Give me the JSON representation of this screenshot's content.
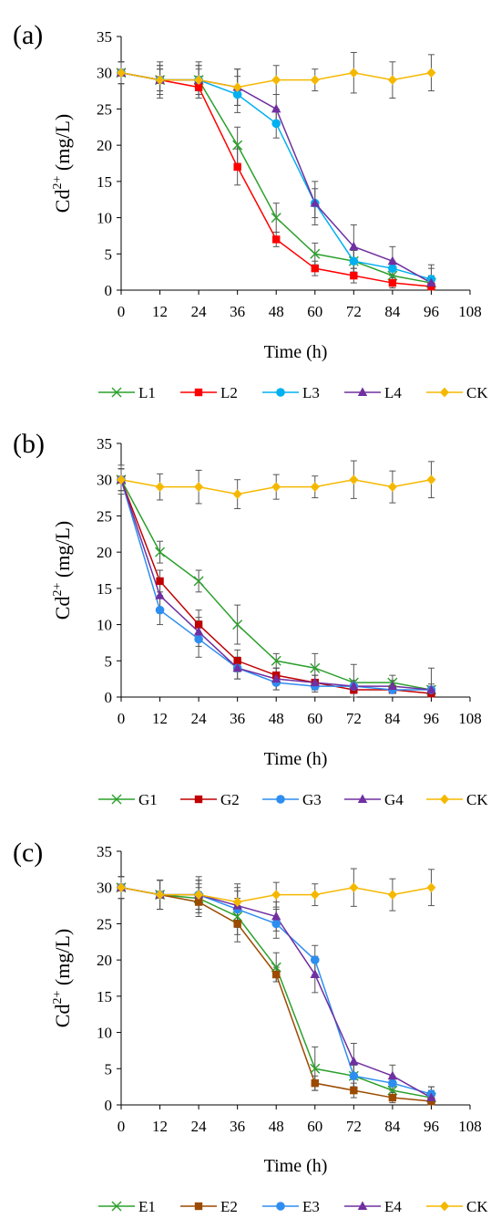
{
  "chart_data": [
    {
      "type": "line",
      "panel_label": "(a)",
      "xlabel": "Time (h)",
      "ylabel": {
        "base": "Cd",
        "sup": "2+",
        "rest": " (mg/L)"
      },
      "xlim": [
        0,
        108
      ],
      "ylim": [
        0,
        35
      ],
      "x_ticks": [
        0,
        12,
        24,
        36,
        48,
        60,
        72,
        84,
        96,
        108
      ],
      "y_ticks": [
        0,
        5,
        10,
        15,
        20,
        25,
        30,
        35
      ],
      "x": [
        0,
        12,
        24,
        36,
        48,
        60,
        72,
        84,
        96
      ],
      "grid": false,
      "legend_position": "bottom",
      "series": [
        {
          "name": "L1",
          "color": "#2ca02c",
          "marker": "x",
          "values": [
            30,
            29,
            29,
            20,
            10,
            5,
            4,
            2,
            1
          ],
          "errors": [
            1.5,
            1.5,
            1.5,
            2.5,
            2.0,
            1.5,
            1.5,
            1.0,
            1.0
          ]
        },
        {
          "name": "L2",
          "color": "#ff0000",
          "marker": "square",
          "values": [
            30,
            29,
            28,
            17,
            7,
            3,
            2,
            1,
            0.5
          ],
          "errors": [
            1.5,
            1.5,
            1.5,
            2.5,
            1.0,
            1.0,
            1.0,
            0.7,
            0.5
          ]
        },
        {
          "name": "L3",
          "color": "#00b0f0",
          "marker": "circle",
          "values": [
            30,
            29,
            29,
            27,
            23,
            12,
            4,
            3,
            1.5
          ],
          "errors": [
            1.5,
            2.0,
            2.0,
            2.5,
            2.0,
            2.0,
            1.5,
            1.0,
            1.5
          ]
        },
        {
          "name": "L4",
          "color": "#7030a0",
          "marker": "triangle",
          "values": [
            30,
            29,
            29,
            28,
            25,
            12,
            6,
            4,
            1
          ],
          "errors": [
            1.5,
            2.0,
            2.0,
            2.5,
            2.0,
            3.0,
            3.0,
            2.0,
            2.5
          ]
        },
        {
          "name": "CK",
          "color": "#f5b800",
          "marker": "diamond",
          "values": [
            30,
            29,
            29,
            28,
            29,
            29,
            30,
            29,
            30
          ],
          "errors": [
            1.5,
            2.5,
            2.5,
            2.5,
            2.0,
            1.5,
            2.8,
            2.5,
            2.5
          ]
        }
      ]
    },
    {
      "type": "line",
      "panel_label": "(b)",
      "xlabel": "Time (h)",
      "ylabel": {
        "base": "Cd",
        "sup": "2+",
        "rest": " (mg/L)"
      },
      "xlim": [
        0,
        108
      ],
      "ylim": [
        0,
        35
      ],
      "x_ticks": [
        0,
        12,
        24,
        36,
        48,
        60,
        72,
        84,
        96,
        108
      ],
      "y_ticks": [
        0,
        5,
        10,
        15,
        20,
        25,
        30,
        35
      ],
      "x": [
        0,
        12,
        24,
        36,
        48,
        60,
        72,
        84,
        96
      ],
      "grid": false,
      "legend_position": "bottom",
      "series": [
        {
          "name": "G1",
          "color": "#2ca02c",
          "marker": "x",
          "values": [
            30,
            20,
            16,
            10,
            5,
            4,
            2,
            2,
            1
          ],
          "errors": [
            2.0,
            1.5,
            1.5,
            2.7,
            1.0,
            2.0,
            2.5,
            1.0,
            3.0
          ]
        },
        {
          "name": "G2",
          "color": "#c00000",
          "marker": "square",
          "values": [
            30,
            16,
            10,
            5,
            3,
            2,
            1,
            1,
            0.5
          ],
          "errors": [
            1.5,
            1.5,
            2.0,
            1.5,
            1.0,
            1.0,
            0.5,
            0.5,
            0.5
          ]
        },
        {
          "name": "G3",
          "color": "#2e8ef0",
          "marker": "circle",
          "values": [
            30,
            12,
            8,
            4,
            2,
            1.5,
            1.5,
            1,
            1
          ],
          "errors": [
            1.5,
            2.0,
            2.5,
            1.5,
            1.0,
            0.8,
            0.5,
            0.5,
            0.5
          ]
        },
        {
          "name": "G4",
          "color": "#7030a0",
          "marker": "triangle",
          "values": [
            30,
            14,
            9,
            4,
            2.5,
            2,
            1.5,
            1.5,
            1
          ],
          "errors": [
            1.5,
            2.0,
            2.0,
            1.5,
            1.5,
            1.0,
            0.8,
            0.8,
            0.8
          ]
        },
        {
          "name": "CK",
          "color": "#f5b800",
          "marker": "diamond",
          "values": [
            30,
            29,
            29,
            28,
            29,
            29,
            30,
            29,
            30
          ],
          "errors": [
            1.5,
            1.8,
            2.3,
            2.0,
            1.7,
            1.5,
            2.6,
            2.2,
            2.5
          ]
        }
      ]
    },
    {
      "type": "line",
      "panel_label": "(c)",
      "xlabel": "Time (h)",
      "ylabel": {
        "base": "Cd",
        "sup": "2+",
        "rest": " (mg/L)"
      },
      "xlim": [
        0,
        108
      ],
      "ylim": [
        0,
        35
      ],
      "x_ticks": [
        0,
        12,
        24,
        36,
        48,
        60,
        72,
        84,
        96,
        108
      ],
      "y_ticks": [
        0,
        5,
        10,
        15,
        20,
        25,
        30,
        35
      ],
      "x": [
        0,
        12,
        24,
        36,
        48,
        60,
        72,
        84,
        96
      ],
      "grid": false,
      "legend_position": "bottom",
      "series": [
        {
          "name": "E1",
          "color": "#2ca02c",
          "marker": "x",
          "values": [
            30,
            29,
            28.5,
            26,
            19,
            5,
            4,
            2,
            1
          ],
          "errors": [
            1.5,
            2.0,
            2.0,
            2.5,
            2.0,
            3.0,
            1.5,
            1.0,
            1.0
          ]
        },
        {
          "name": "E2",
          "color": "#9c4a00",
          "marker": "square",
          "values": [
            30,
            29,
            28,
            25,
            18,
            3,
            2,
            1,
            0.5
          ],
          "errors": [
            1.5,
            2.0,
            2.0,
            2.5,
            1.0,
            1.0,
            1.0,
            0.7,
            0.5
          ]
        },
        {
          "name": "E3",
          "color": "#2e8ef0",
          "marker": "circle",
          "values": [
            30,
            29,
            29,
            27,
            25,
            20,
            4,
            3,
            1.5
          ],
          "errors": [
            1.5,
            2.0,
            2.0,
            2.5,
            2.0,
            2.0,
            1.5,
            1.0,
            1.0
          ]
        },
        {
          "name": "E4",
          "color": "#7030a0",
          "marker": "triangle",
          "values": [
            30,
            29,
            29,
            27.5,
            26,
            18,
            6,
            4,
            1
          ],
          "errors": [
            1.5,
            2.0,
            2.0,
            2.5,
            2.0,
            2.5,
            2.5,
            1.5,
            1.5
          ]
        },
        {
          "name": "CK",
          "color": "#f5b800",
          "marker": "diamond",
          "values": [
            30,
            29,
            29,
            28,
            29,
            29,
            30,
            29,
            30
          ],
          "errors": [
            1.5,
            2.0,
            2.5,
            2.5,
            1.7,
            1.5,
            2.6,
            2.2,
            2.5
          ]
        }
      ]
    }
  ]
}
